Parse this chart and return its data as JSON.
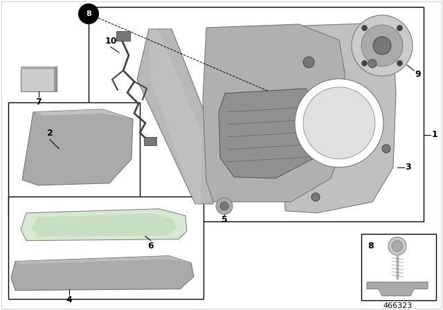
{
  "background_color": "#ffffff",
  "part_number": "466323",
  "black": "#000000",
  "white": "#ffffff",
  "lgray": "#cccccc",
  "mgray": "#aaaaaa",
  "dgray": "#777777",
  "xdgray": "#444444",
  "green_tint": "#c5dcc0",
  "box_border": "#333333"
}
